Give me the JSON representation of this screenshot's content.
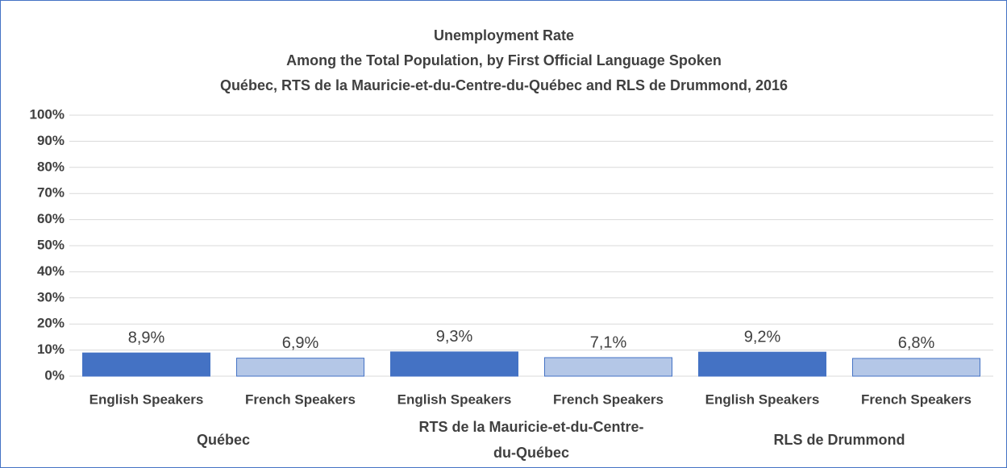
{
  "chart_data": {
    "type": "bar",
    "title": "Unemployment Rate",
    "subtitle": [
      "Among the Total Population, by First Official Language Spoken",
      "Québec, RTS de la Mauricie-et-du-Centre-du-Québec  and RLS de Drummond, 2016"
    ],
    "categories": [
      "English Speakers",
      "French Speakers",
      "English Speakers",
      "French Speakers",
      "English Speakers",
      "French Speakers"
    ],
    "group_labels": [
      "Québec",
      "RTS de la Mauricie-et-du-Centre-du-Québec",
      "RLS de Drummond"
    ],
    "values": [
      8.9,
      6.9,
      9.3,
      7.1,
      9.2,
      6.8
    ],
    "value_labels": [
      "8,9%",
      "6,9%",
      "9,3%",
      "7,1%",
      "9,2%",
      "6,8%"
    ],
    "colors": [
      "#4472c4",
      "#b4c7e7",
      "#4472c4",
      "#b4c7e7",
      "#4472c4",
      "#b4c7e7"
    ],
    "ylim": [
      0,
      100
    ],
    "yticks": [
      {
        "value": 0,
        "label": "0%"
      },
      {
        "value": 10,
        "label": "10%"
      },
      {
        "value": 20,
        "label": "20%"
      },
      {
        "value": 30,
        "label": "30%"
      },
      {
        "value": 40,
        "label": "40%"
      },
      {
        "value": 50,
        "label": "50%"
      },
      {
        "value": 60,
        "label": "60%"
      },
      {
        "value": 70,
        "label": "70%"
      },
      {
        "value": 80,
        "label": "80%"
      },
      {
        "value": 90,
        "label": "90%"
      },
      {
        "value": 100,
        "label": "100%"
      }
    ],
    "grid": true
  }
}
